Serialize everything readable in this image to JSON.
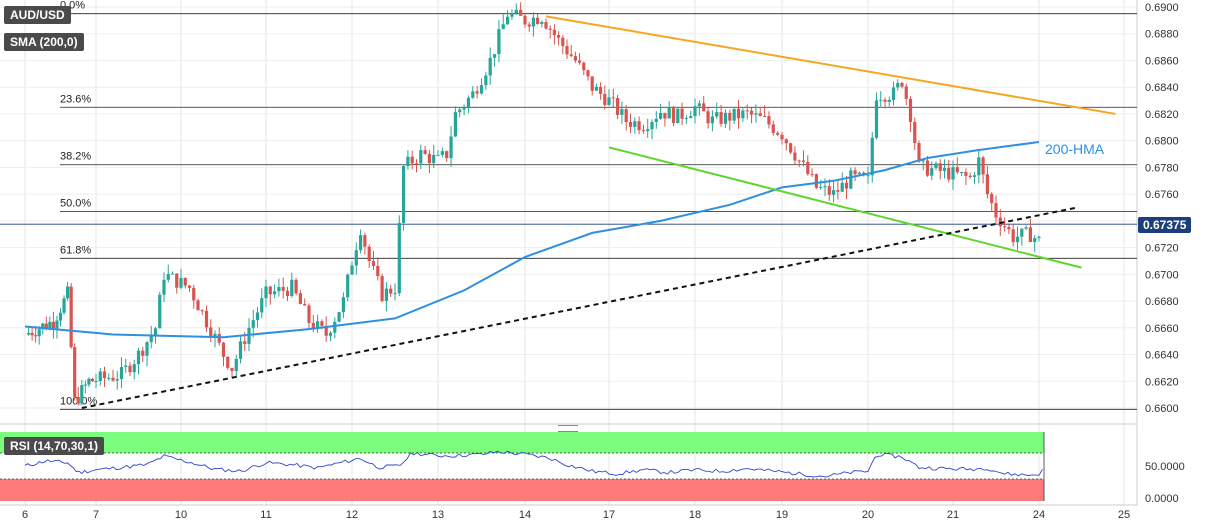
{
  "symbol_label": "AUD/USD",
  "sma_label": "SMA (200,0)",
  "rsi_label": "RSI (14,70,30,1)",
  "hma_label": "200-HMA",
  "last_price_label": "0.67375",
  "colors": {
    "up": "#26a69a",
    "down": "#d9534f",
    "hma": "#2f8fe0",
    "orange_trend": "#f5a623",
    "green_trend": "#5ed62c",
    "dotted_trend": "#111111",
    "rsi_line": "#2f45c8",
    "rsi_over": "#7cfc7c",
    "rsi_under": "#ff7b7b",
    "last_price_bg": "#1c3f7a"
  },
  "chart_data": {
    "type": "line",
    "ylim": [
      0.659,
      0.69
    ],
    "yticks": [
      "0.6600",
      "0.6620",
      "0.6640",
      "0.6660",
      "0.6680",
      "0.6700",
      "0.6720",
      "0.6740",
      "0.6760",
      "0.6780",
      "0.6800",
      "0.6820",
      "0.6840",
      "0.6860",
      "0.6880",
      "0.6900"
    ],
    "xticks": [
      "6",
      "7",
      "10",
      "11",
      "12",
      "13",
      "14",
      "17",
      "18",
      "19",
      "20",
      "21",
      "24",
      "25"
    ],
    "fib_levels": [
      {
        "label": "0.0%",
        "value": 0.6895
      },
      {
        "label": "23.6%",
        "value": 0.6825
      },
      {
        "label": "38.2%",
        "value": 0.6782
      },
      {
        "label": "50.0%",
        "value": 0.6747
      },
      {
        "label": "61.8%",
        "value": 0.6712
      },
      {
        "label": "100.0%",
        "value": 0.6599
      }
    ],
    "last_price": 0.67375,
    "price_path": [
      [
        0,
        0.6655
      ],
      [
        0.4,
        0.6665
      ],
      [
        0.6,
        0.6685
      ],
      [
        0.7,
        0.6605
      ],
      [
        0.9,
        0.662
      ],
      [
        1.3,
        0.6625
      ],
      [
        1.5,
        0.664
      ],
      [
        1.7,
        0.666
      ],
      [
        1.8,
        0.67
      ],
      [
        2.1,
        0.669
      ],
      [
        2.3,
        0.6665
      ],
      [
        2.5,
        0.664
      ],
      [
        2.6,
        0.663
      ],
      [
        2.8,
        0.666
      ],
      [
        3.0,
        0.6685
      ],
      [
        3.3,
        0.669
      ],
      [
        3.5,
        0.6665
      ],
      [
        3.7,
        0.6655
      ],
      [
        3.9,
        0.668
      ],
      [
        4.0,
        0.671
      ],
      [
        4.1,
        0.6735
      ],
      [
        4.2,
        0.671
      ],
      [
        4.35,
        0.6685
      ],
      [
        4.5,
        0.669
      ],
      [
        4.6,
        0.678
      ],
      [
        4.8,
        0.679
      ],
      [
        5.0,
        0.6785
      ],
      [
        5.1,
        0.679
      ],
      [
        5.2,
        0.682
      ],
      [
        5.4,
        0.6835
      ],
      [
        5.6,
        0.686
      ],
      [
        5.8,
        0.6895
      ],
      [
        6.0,
        0.689
      ],
      [
        6.2,
        0.6893
      ],
      [
        6.4,
        0.6875
      ],
      [
        6.6,
        0.686
      ],
      [
        6.8,
        0.684
      ],
      [
        7.0,
        0.683
      ],
      [
        7.2,
        0.6815
      ],
      [
        7.4,
        0.6812
      ],
      [
        7.6,
        0.6822
      ],
      [
        7.8,
        0.6818
      ],
      [
        8.0,
        0.6825
      ],
      [
        8.2,
        0.6815
      ],
      [
        8.4,
        0.6818
      ],
      [
        8.6,
        0.682
      ],
      [
        8.8,
        0.6815
      ],
      [
        9.0,
        0.6805
      ],
      [
        9.2,
        0.6785
      ],
      [
        9.4,
        0.6765
      ],
      [
        9.6,
        0.676
      ],
      [
        9.8,
        0.6772
      ],
      [
        10.0,
        0.677
      ],
      [
        10.1,
        0.6835
      ],
      [
        10.3,
        0.6835
      ],
      [
        10.4,
        0.6845
      ],
      [
        10.5,
        0.682
      ],
      [
        10.6,
        0.678
      ],
      [
        10.8,
        0.6778
      ],
      [
        11.0,
        0.6775
      ],
      [
        11.2,
        0.6772
      ],
      [
        11.3,
        0.6785
      ],
      [
        11.4,
        0.676
      ],
      [
        11.5,
        0.6745
      ],
      [
        11.7,
        0.6728
      ],
      [
        11.9,
        0.673
      ],
      [
        12.0,
        0.6725
      ],
      [
        12.05,
        0.67375
      ]
    ],
    "hma_path": [
      [
        0,
        0.6661
      ],
      [
        1.2,
        0.6655
      ],
      [
        2.5,
        0.6653
      ],
      [
        3.5,
        0.6659
      ],
      [
        4.5,
        0.6667
      ],
      [
        5.3,
        0.6688
      ],
      [
        6.0,
        0.6713
      ],
      [
        6.8,
        0.6731
      ],
      [
        7.6,
        0.674
      ],
      [
        8.4,
        0.6752
      ],
      [
        9.0,
        0.6765
      ],
      [
        9.6,
        0.677
      ],
      [
        10.2,
        0.6778
      ],
      [
        10.7,
        0.6787
      ],
      [
        11.3,
        0.6793
      ],
      [
        12.0,
        0.6799
      ]
    ],
    "trendlines": [
      {
        "name": "orange",
        "color": "#f5a623",
        "dash": false,
        "from": [
          6.25,
          0.6893
        ],
        "to": [
          12.9,
          0.682
        ]
      },
      {
        "name": "green",
        "color": "#5ed62c",
        "dash": false,
        "from": [
          7.0,
          0.6795
        ],
        "to": [
          12.5,
          0.6705
        ]
      },
      {
        "name": "dotted",
        "color": "#111111",
        "dash": true,
        "from": [
          0.8,
          0.66
        ],
        "to": [
          12.45,
          0.675
        ]
      }
    ],
    "rsi": {
      "ylim": [
        0,
        100
      ],
      "levels": [
        70,
        30
      ],
      "tick_labels": [
        "50.0000",
        "0.0000"
      ],
      "values": [
        [
          0,
          50
        ],
        [
          0.3,
          58
        ],
        [
          0.6,
          55
        ],
        [
          0.75,
          40
        ],
        [
          1.0,
          44
        ],
        [
          1.3,
          48
        ],
        [
          1.6,
          52
        ],
        [
          1.8,
          65
        ],
        [
          2.1,
          56
        ],
        [
          2.4,
          45
        ],
        [
          2.7,
          42
        ],
        [
          3.0,
          55
        ],
        [
          3.3,
          52
        ],
        [
          3.6,
          47
        ],
        [
          3.9,
          56
        ],
        [
          4.1,
          62
        ],
        [
          4.3,
          48
        ],
        [
          4.55,
          50
        ],
        [
          4.7,
          70
        ],
        [
          5.0,
          66
        ],
        [
          5.2,
          66
        ],
        [
          5.5,
          68
        ],
        [
          5.7,
          72
        ],
        [
          6.0,
          68
        ],
        [
          6.3,
          62
        ],
        [
          6.5,
          52
        ],
        [
          6.8,
          42
        ],
        [
          7.1,
          38
        ],
        [
          7.4,
          44
        ],
        [
          7.7,
          40
        ],
        [
          8.0,
          44
        ],
        [
          8.3,
          42
        ],
        [
          8.6,
          46
        ],
        [
          8.9,
          42
        ],
        [
          9.2,
          38
        ],
        [
          9.5,
          34
        ],
        [
          9.8,
          40
        ],
        [
          10.0,
          42
        ],
        [
          10.1,
          68
        ],
        [
          10.4,
          64
        ],
        [
          10.6,
          48
        ],
        [
          10.9,
          46
        ],
        [
          11.2,
          45
        ],
        [
          11.4,
          47
        ],
        [
          11.6,
          38
        ],
        [
          11.9,
          36
        ],
        [
          12.0,
          38
        ],
        [
          12.05,
          44
        ]
      ]
    }
  }
}
